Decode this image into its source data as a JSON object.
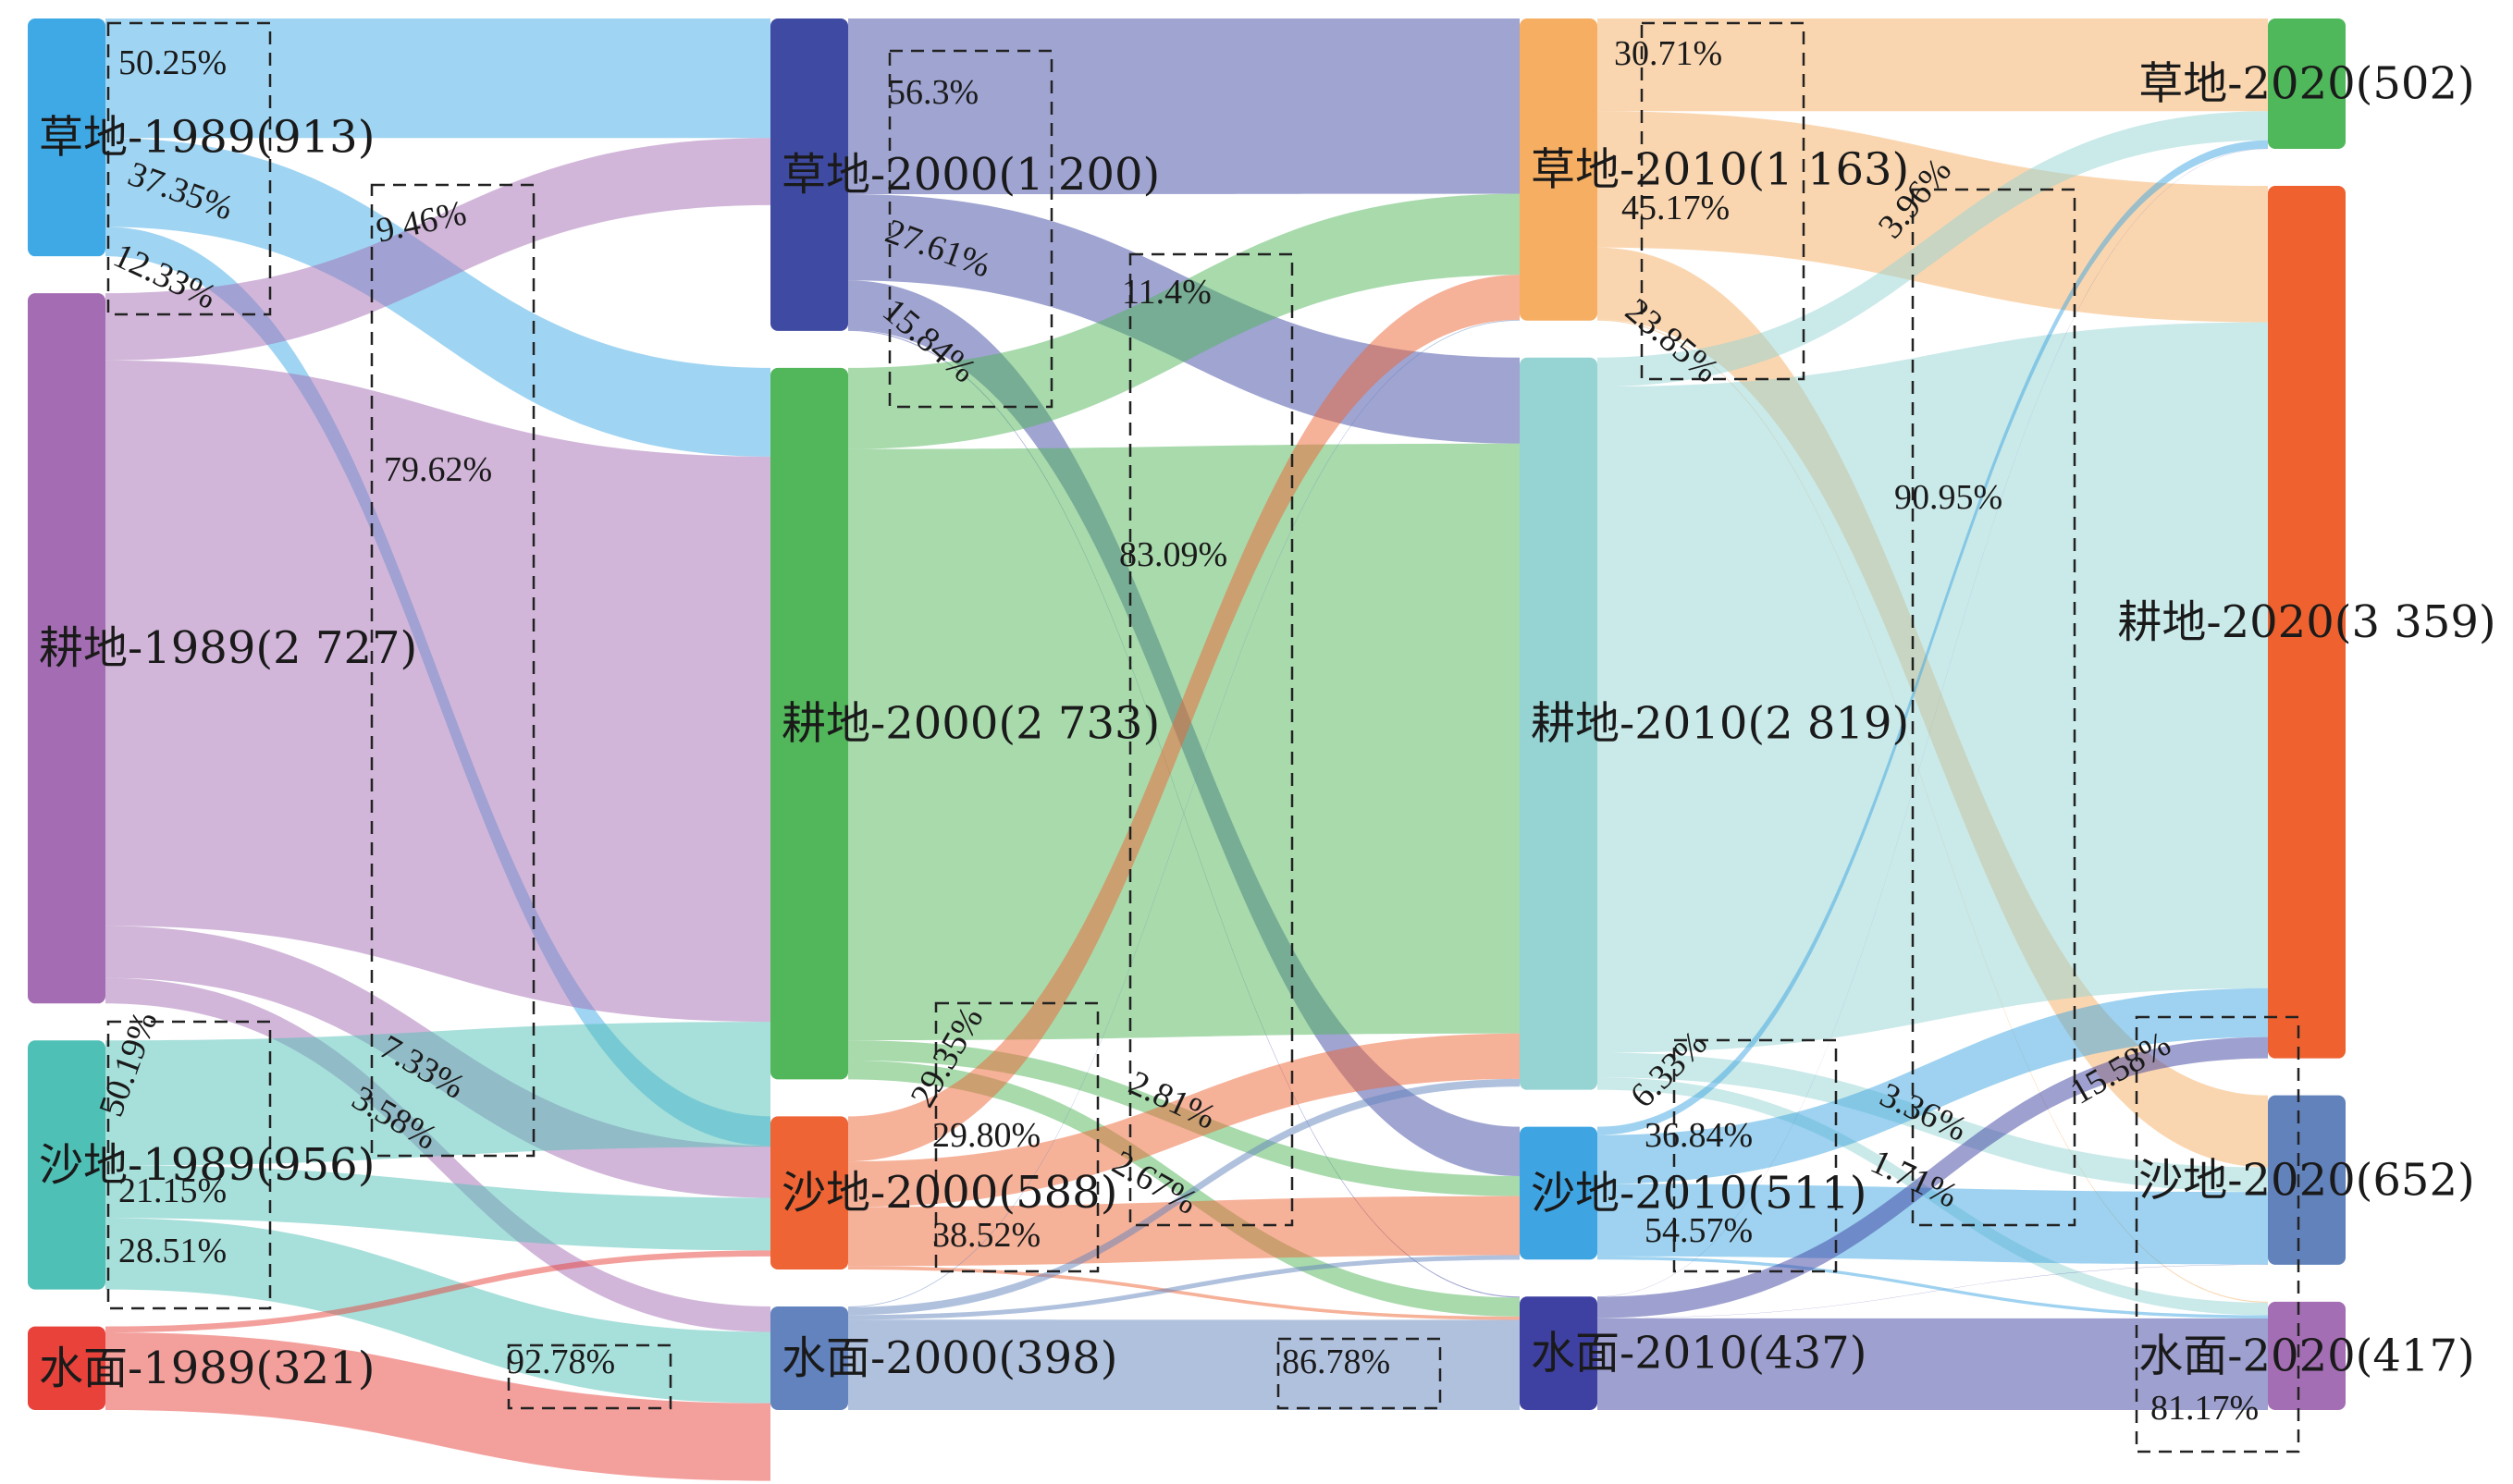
{
  "chart_data": {
    "type": "sankey",
    "columns": [
      {
        "year": "1989",
        "nodes": [
          {
            "id": "g89",
            "label": "草地-1989(913)",
            "category": "草地",
            "value": 913,
            "color": "#3fa9e6"
          },
          {
            "id": "c89",
            "label": "耕地-1989(2 727)",
            "category": "耕地",
            "value": 2727,
            "color": "#a46db3"
          },
          {
            "id": "s89",
            "label": "沙地-1989(956)",
            "category": "沙地",
            "value": 956,
            "color": "#4fc0b6"
          },
          {
            "id": "w89",
            "label": "水面-1989(321)",
            "category": "水面",
            "value": 321,
            "color": "#e8423b"
          }
        ]
      },
      {
        "year": "2000",
        "nodes": [
          {
            "id": "g00",
            "label": "草地-2000(1 200)",
            "category": "草地",
            "value": 1200,
            "color": "#3f4aa3"
          },
          {
            "id": "c00",
            "label": "耕地-2000(2 733)",
            "category": "耕地",
            "value": 2733,
            "color": "#52b65a"
          },
          {
            "id": "s00",
            "label": "沙地-2000(588)",
            "category": "沙地",
            "value": 588,
            "color": "#ee6434"
          },
          {
            "id": "w00",
            "label": "水面-2000(398)",
            "category": "水面",
            "value": 398,
            "color": "#6283be"
          }
        ]
      },
      {
        "year": "2010",
        "nodes": [
          {
            "id": "g10",
            "label": "草地-2010(1 163)",
            "category": "草地",
            "value": 1163,
            "color": "#f6ae62"
          },
          {
            "id": "c10",
            "label": "耕地-2010(2 819)",
            "category": "耕地",
            "value": 2819,
            "color": "#96d3d3"
          },
          {
            "id": "s10",
            "label": "沙地-2010(511)",
            "category": "沙地",
            "value": 511,
            "color": "#3ea5e2"
          },
          {
            "id": "w10",
            "label": "水面-2010(437)",
            "category": "水面",
            "value": 437,
            "color": "#3e41a1"
          }
        ]
      },
      {
        "year": "2020",
        "nodes": [
          {
            "id": "g20",
            "label": "草地-2020(502)",
            "category": "草地",
            "value": 502,
            "color": "#4fb85a"
          },
          {
            "id": "c20",
            "label": "耕地-2020(3 359)",
            "category": "耕地",
            "value": 3359,
            "color": "#ef6230"
          },
          {
            "id": "s20",
            "label": "沙地-2020(652)",
            "category": "沙地",
            "value": 652,
            "color": "#6282bc"
          },
          {
            "id": "w20",
            "label": "水面-2020(417)",
            "category": "水面",
            "value": 417,
            "color": "#a46eb4"
          }
        ]
      }
    ],
    "links": [
      {
        "source": "g89",
        "target": "g00",
        "value": 459
      },
      {
        "source": "g89",
        "target": "c00",
        "value": 341
      },
      {
        "source": "g89",
        "target": "s00",
        "value": 113
      },
      {
        "source": "c89",
        "target": "g00",
        "value": 258
      },
      {
        "source": "c89",
        "target": "c00",
        "value": 2171
      },
      {
        "source": "c89",
        "target": "s00",
        "value": 200
      },
      {
        "source": "c89",
        "target": "w00",
        "value": 98
      },
      {
        "source": "s89",
        "target": "c00",
        "value": 480
      },
      {
        "source": "s89",
        "target": "s00",
        "value": 202
      },
      {
        "source": "s89",
        "target": "w00",
        "value": 274
      },
      {
        "source": "w89",
        "target": "s00",
        "value": 23
      },
      {
        "source": "w89",
        "target": "w00",
        "value": 298
      },
      {
        "source": "g00",
        "target": "g10",
        "value": 675
      },
      {
        "source": "g00",
        "target": "c10",
        "value": 331
      },
      {
        "source": "g00",
        "target": "s10",
        "value": 190
      },
      {
        "source": "g00",
        "target": "w10",
        "value": 4
      },
      {
        "source": "c00",
        "target": "g10",
        "value": 312
      },
      {
        "source": "c00",
        "target": "c10",
        "value": 2271
      },
      {
        "source": "c00",
        "target": "s10",
        "value": 77
      },
      {
        "source": "c00",
        "target": "w10",
        "value": 73
      },
      {
        "source": "s00",
        "target": "g10",
        "value": 173
      },
      {
        "source": "s00",
        "target": "c10",
        "value": 175
      },
      {
        "source": "s00",
        "target": "s10",
        "value": 227
      },
      {
        "source": "s00",
        "target": "w10",
        "value": 13
      },
      {
        "source": "w00",
        "target": "g10",
        "value": 3
      },
      {
        "source": "w00",
        "target": "c10",
        "value": 30
      },
      {
        "source": "w00",
        "target": "s10",
        "value": 18
      },
      {
        "source": "w00",
        "target": "w10",
        "value": 347
      },
      {
        "source": "g10",
        "target": "g20",
        "value": 357
      },
      {
        "source": "g10",
        "target": "c20",
        "value": 525
      },
      {
        "source": "g10",
        "target": "s20",
        "value": 277
      },
      {
        "source": "g10",
        "target": "w20",
        "value": 4
      },
      {
        "source": "c10",
        "target": "g20",
        "value": 112
      },
      {
        "source": "c10",
        "target": "c20",
        "value": 2564
      },
      {
        "source": "c10",
        "target": "s20",
        "value": 95
      },
      {
        "source": "c10",
        "target": "w20",
        "value": 48
      },
      {
        "source": "s10",
        "target": "g20",
        "value": 32
      },
      {
        "source": "s10",
        "target": "c20",
        "value": 188
      },
      {
        "source": "s10",
        "target": "s20",
        "value": 279
      },
      {
        "source": "s10",
        "target": "w20",
        "value": 12
      },
      {
        "source": "w10",
        "target": "g20",
        "value": 1
      },
      {
        "source": "w10",
        "target": "c20",
        "value": 82
      },
      {
        "source": "w10",
        "target": "s20",
        "value": 1
      },
      {
        "source": "w10",
        "target": "w20",
        "value": 353
      }
    ],
    "percent_labels": [
      "50.25%",
      "37.35%",
      "12.33%",
      "9.46%",
      "79.62%",
      "7.33%",
      "3.58%",
      "50.19%",
      "21.15%",
      "28.51%",
      "92.78%",
      "56.3%",
      "27.61%",
      "15.84%",
      "11.4%",
      "83.09%",
      "2.81%",
      "2.67%",
      "29.35%",
      "29.80%",
      "38.52%",
      "86.78%",
      "30.71%",
      "45.17%",
      "23.85%",
      "3.96%",
      "90.95%",
      "3.36%",
      "1.71%",
      "6.33%",
      "36.84%",
      "54.57%",
      "15.58%",
      "81.17%"
    ]
  }
}
